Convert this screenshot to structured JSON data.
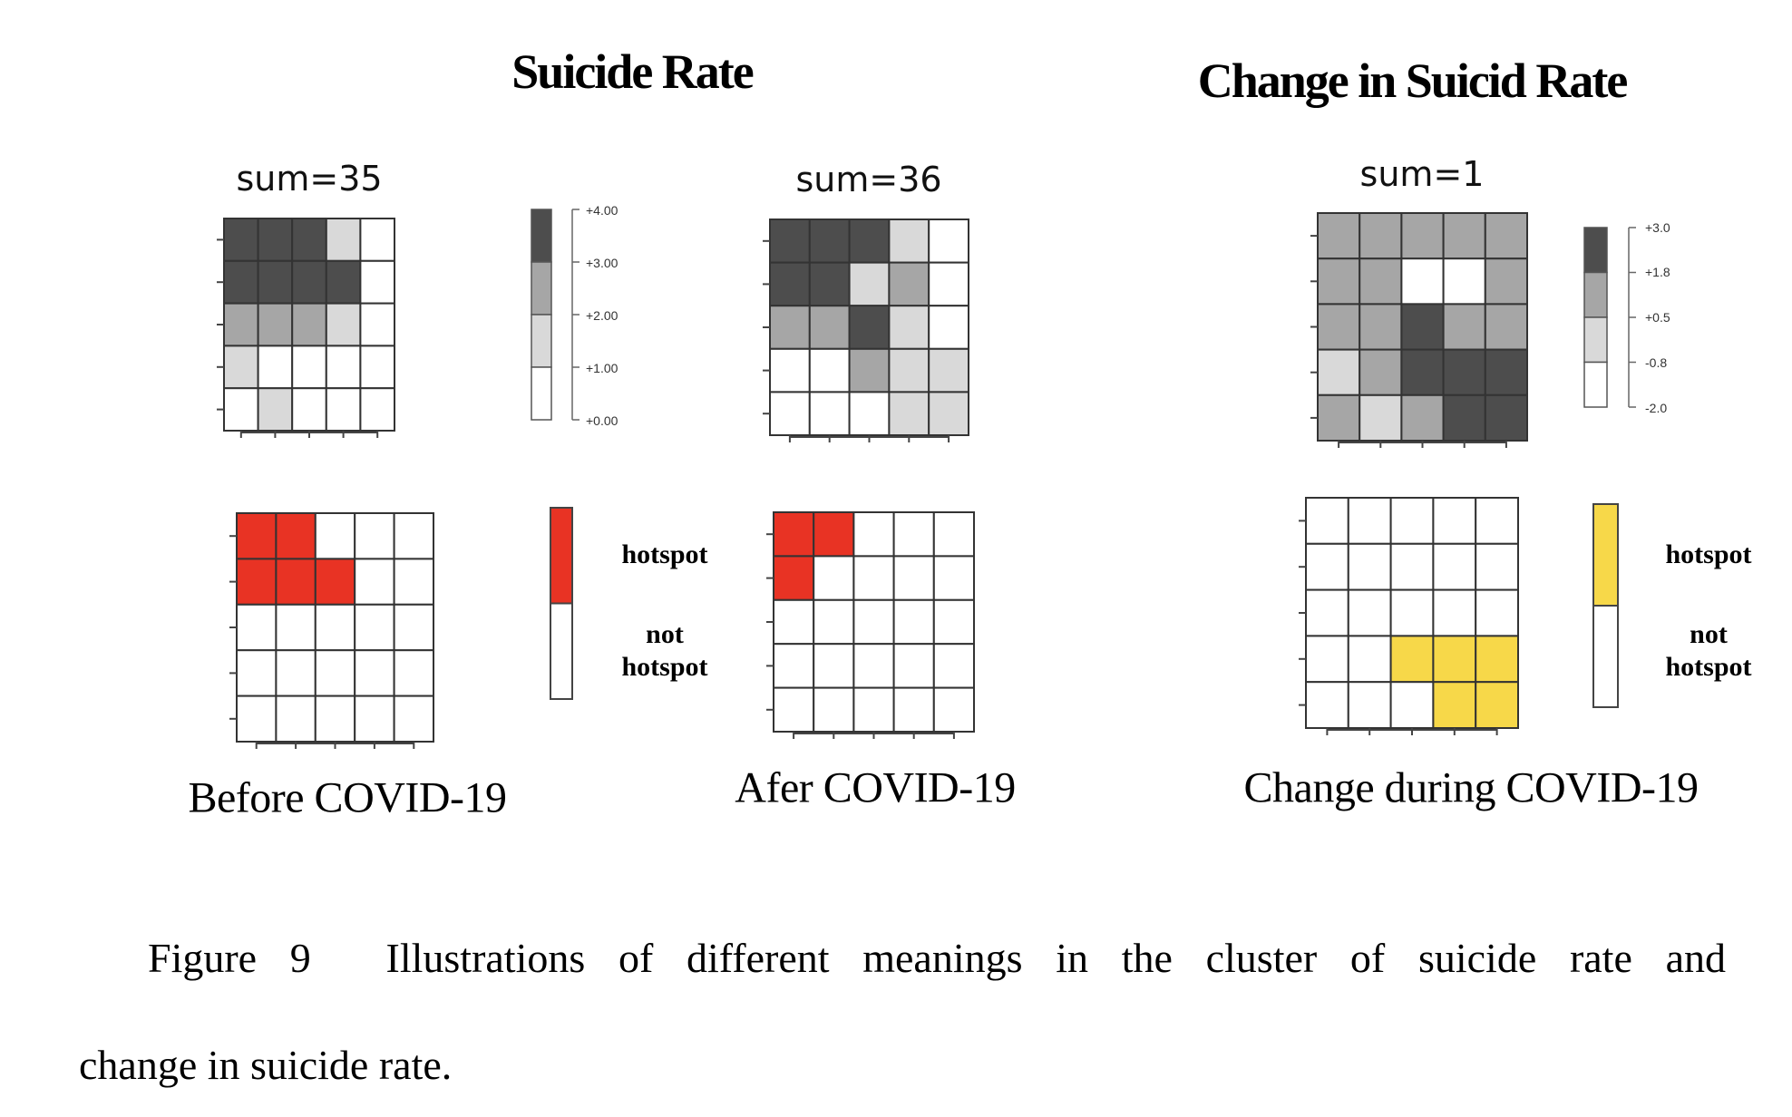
{
  "titles": {
    "left": "Suicide Rate",
    "right": "Change in Suicid Rate"
  },
  "colors": {
    "level_4": "#4d4d4d",
    "level_3": "#a6a6a6",
    "level_2": "#d9d9d9",
    "level_1": "#ffffff",
    "hotspot_red": "#e83324",
    "hotspot_yellow": "#f7d849",
    "not_hotspot": "#ffffff",
    "grid_line": "#333333"
  },
  "chart_data": [
    {
      "type": "heatmap",
      "id": "before",
      "title": "sum=35",
      "caption": "Before COVID-19",
      "legend_ticks": [
        "+4.00",
        "+3.00",
        "+2.00",
        "+1.00",
        "+0.00"
      ],
      "legend_levels": [
        "level_4",
        "level_3",
        "level_2",
        "level_1"
      ],
      "value_range": [
        0,
        4
      ],
      "cells": [
        [
          4,
          4,
          4,
          2,
          1
        ],
        [
          4,
          4,
          4,
          4,
          1
        ],
        [
          3,
          3,
          3,
          2,
          1
        ],
        [
          2,
          1,
          1,
          1,
          1
        ],
        [
          1,
          2,
          1,
          1,
          1
        ]
      ],
      "cell_legend": "4 = +3.00..+4.00, 3 = +2.00..+3.00, 2 = +1.00..+2.00, 1 = +0.00..+1.00"
    },
    {
      "type": "heatmap",
      "id": "after",
      "title": "sum=36",
      "caption": "Afer COVID-19",
      "value_range": [
        0,
        4
      ],
      "cells": [
        [
          4,
          4,
          4,
          2,
          1
        ],
        [
          4,
          4,
          2,
          3,
          1
        ],
        [
          3,
          3,
          4,
          2,
          1
        ],
        [
          1,
          1,
          3,
          2,
          2
        ],
        [
          1,
          1,
          1,
          2,
          2
        ]
      ]
    },
    {
      "type": "heatmap",
      "id": "change",
      "title": "sum=1",
      "caption": "Change during COVID-19",
      "legend_ticks": [
        "+3.0",
        "+1.8",
        "+0.5",
        "-0.8",
        "-2.0"
      ],
      "legend_levels": [
        "level_4",
        "level_3",
        "level_2",
        "level_1"
      ],
      "value_range": [
        -2.0,
        3.0
      ],
      "cells": [
        [
          3,
          3,
          3,
          3,
          3
        ],
        [
          3,
          3,
          1,
          1,
          3
        ],
        [
          3,
          3,
          4,
          3,
          3
        ],
        [
          2,
          3,
          4,
          4,
          4
        ],
        [
          3,
          2,
          3,
          4,
          4
        ]
      ]
    },
    {
      "type": "heatmap",
      "id": "hotspot-before",
      "hotspot_color": "hotspot_red",
      "legend_labels": [
        "hotspot",
        "not",
        "hotspot"
      ],
      "cells": [
        [
          1,
          1,
          0,
          0,
          0
        ],
        [
          1,
          1,
          1,
          0,
          0
        ],
        [
          0,
          0,
          0,
          0,
          0
        ],
        [
          0,
          0,
          0,
          0,
          0
        ],
        [
          0,
          0,
          0,
          0,
          0
        ]
      ]
    },
    {
      "type": "heatmap",
      "id": "hotspot-after",
      "hotspot_color": "hotspot_red",
      "cells": [
        [
          1,
          1,
          0,
          0,
          0
        ],
        [
          1,
          0,
          0,
          0,
          0
        ],
        [
          0,
          0,
          0,
          0,
          0
        ],
        [
          0,
          0,
          0,
          0,
          0
        ],
        [
          0,
          0,
          0,
          0,
          0
        ]
      ]
    },
    {
      "type": "heatmap",
      "id": "hotspot-change",
      "hotspot_color": "hotspot_yellow",
      "legend_labels": [
        "hotspot",
        "not",
        "hotspot"
      ],
      "cells": [
        [
          0,
          0,
          0,
          0,
          0
        ],
        [
          0,
          0,
          0,
          0,
          0
        ],
        [
          0,
          0,
          0,
          0,
          0
        ],
        [
          0,
          0,
          1,
          1,
          1
        ],
        [
          0,
          0,
          0,
          1,
          1
        ]
      ]
    }
  ],
  "hotspot_legend": {
    "hotspot": "hotspot",
    "not_line1": "not",
    "not_line2": "hotspot"
  },
  "figure_caption": {
    "line1": "Figure 9  Illustrations of different meanings in the cluster of suicide rate and",
    "line2": "change in suicide rate."
  }
}
